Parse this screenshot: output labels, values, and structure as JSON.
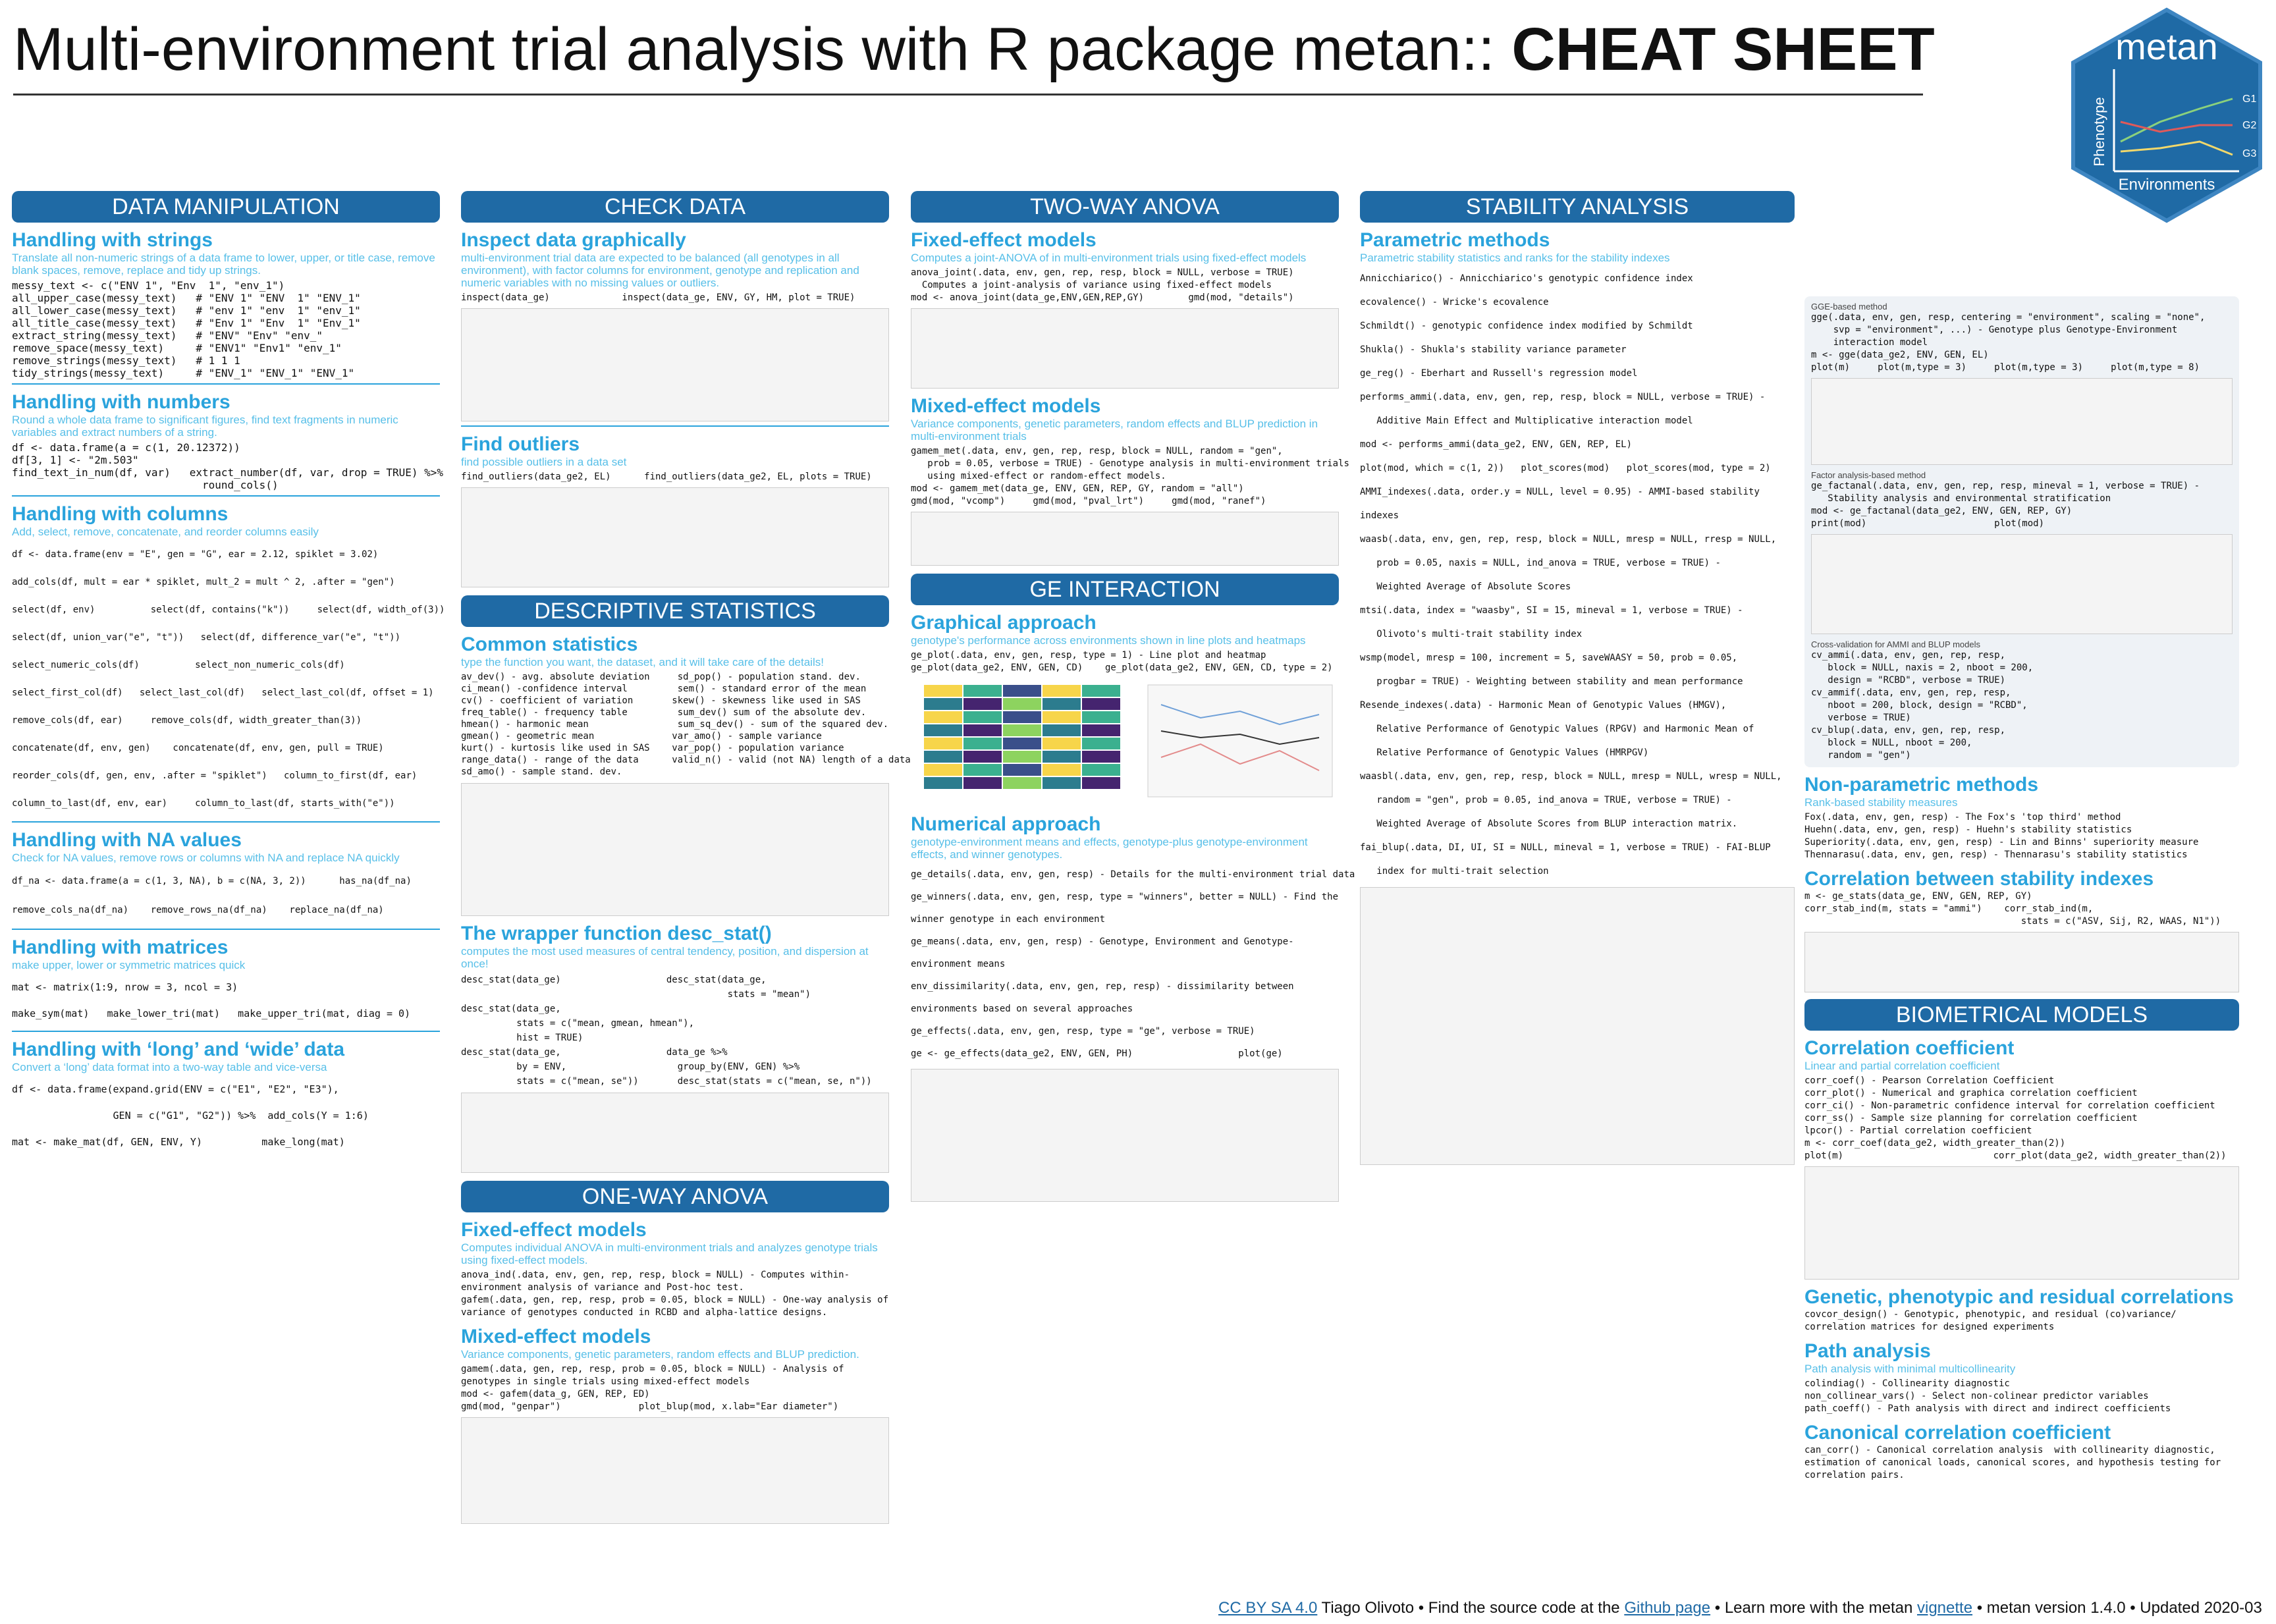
{
  "title": {
    "main": "Multi-environment trial analysis with R package metan:: ",
    "bold": "CHEAT SHEET"
  },
  "logo": {
    "name": "metan",
    "ylabel": "Phenotype",
    "xlabel": "Environments",
    "lines": [
      "G1",
      "G2",
      "G3"
    ]
  },
  "col1": {
    "header": "DATA MANIPULATION",
    "strings": {
      "title": "Handling with strings",
      "sub": "Translate all non-numeric strings of a data frame to lower, upper, or title case, remove blank spaces, remove, replace and tidy up strings.",
      "code": "messy_text <- c(\"ENV 1\", \"Env  1\", \"env_1\")\nall_upper_case(messy_text)   # \"ENV 1\" \"ENV  1\" \"ENV_1\"\nall_lower_case(messy_text)   # \"env 1\" \"env  1\" \"env_1\"\nall_title_case(messy_text)   # \"Env 1\" \"Env  1\" \"Env_1\"\nextract_string(messy_text)   # \"ENV\" \"Env\" \"env_\"\nremove_space(messy_text)     # \"ENV1\" \"Env1\" \"env_1\"\nremove_strings(messy_text)   # 1 1 1\ntidy_strings(messy_text)     # \"ENV_1\" \"ENV_1\" \"ENV_1\""
    },
    "numbers": {
      "title": "Handling with numbers",
      "sub": "Round a whole data frame to significant figures, find text fragments in numeric variables and extract numbers of a string.",
      "code": "df <- data.frame(a = c(1, 20.12372))\ndf[3, 1] <- \"2m.503\"\nfind_text_in_num(df, var)   extract_number(df, var, drop = TRUE) %>%\n                              round_cols()"
    },
    "columns": {
      "title": "Handling with columns",
      "sub": "Add, select, remove, concatenate, and reorder columns easily",
      "code": "df <- data.frame(env = \"E\", gen = \"G\", ear = 2.12, spiklet = 3.02)\nadd_cols(df, mult = ear * spiklet, mult_2 = mult ^ 2, .after = \"gen\")\nselect(df, env)          select(df, contains(\"k\"))     select(df, width_of(3))\nselect(df, union_var(\"e\", \"t\"))   select(df, difference_var(\"e\", \"t\"))\nselect_numeric_cols(df)          select_non_numeric_cols(df)\nselect_first_col(df)   select_last_col(df)   select_last_col(df, offset = 1)\nremove_cols(df, ear)     remove_cols(df, width_greater_than(3))\nconcatenate(df, env, gen)    concatenate(df, env, gen, pull = TRUE)\nreorder_cols(df, gen, env, .after = \"spiklet\")   column_to_first(df, ear)\ncolumn_to_last(df, env, ear)     column_to_last(df, starts_with(\"e\"))"
    },
    "na": {
      "title": "Handling with NA values",
      "sub": "Check for NA values, remove rows or columns with NA and replace NA quickly",
      "code": "df_na <- data.frame(a = c(1, 3, NA), b = c(NA, 3, 2))      has_na(df_na)\nremove_cols_na(df_na)    remove_rows_na(df_na)    replace_na(df_na)"
    },
    "matrices": {
      "title": "Handling with matrices",
      "sub": "make upper, lower or symmetric matrices quick",
      "code": "mat <- matrix(1:9, nrow = 3, ncol = 3)\nmake_sym(mat)   make_lower_tri(mat)   make_upper_tri(mat, diag = 0)"
    },
    "longwide": {
      "title": "Handling with ‘long’ and ‘wide’ data",
      "sub": "Convert a ‘long’ data format into a two-way table and vice-versa",
      "code": "df <- data.frame(expand.grid(ENV = c(\"E1\", \"E2\", \"E3\"),\n                 GEN = c(\"G1\", \"G2\")) %>%  add_cols(Y = 1:6)\nmat <- make_mat(df, GEN, ENV, Y)          make_long(mat)"
    }
  },
  "col2": {
    "header": "CHECK DATA",
    "inspect": {
      "title": "Inspect data graphically",
      "sub": "multi-environment trial data are expected to be balanced (all genotypes in all environment), with factor columns for environment, genotype and replication and numeric variables with no missing values or outliers.",
      "code": "inspect(data_ge)             inspect(data_ge, ENV, GY, HM, plot = TRUE)"
    },
    "outliers": {
      "title": "Find outliers",
      "sub": "find possible outliers in a data set",
      "code": "find_outliers(data_ge2, EL)      find_outliers(data_ge2, EL, plots = TRUE)"
    },
    "desc_header": "DESCRIPTIVE STATISTICS",
    "common": {
      "title": "Common statistics",
      "sub": "type the function you want, the dataset, and it will take care of the details!",
      "code": "av_dev() - avg. absolute deviation     sd_pop() - population stand. dev.\nci_mean() -confidence interval         sem() - standard error of the mean\ncv() - coefficient of variation       skew() - skewness like used in SAS\nfreq_table() - frequency table         sum_dev() sum of the absolute dev.\nhmean() - harmonic mean                sum_sq_dev() - sum of the squared dev.\ngmean() - geometric mean              var_amo() - sample variance\nkurt() - kurtosis like used in SAS    var_pop() - population variance\nrange_data() - range of the data      valid_n() - valid (not NA) length of a data\nsd_amo() - sample stand. dev."
    },
    "wrapper": {
      "title": "The wrapper function desc_stat()",
      "sub": "computes the most used measures of central tendency, position, and dispersion at once!",
      "code": "desc_stat(data_ge)                   desc_stat(data_ge,\n                                                stats = \"mean\")\ndesc_stat(data_ge,\n          stats = c(\"mean, gmean, hmean\"),\n          hist = TRUE)\ndesc_stat(data_ge,                   data_ge %>%\n          by = ENV,                    group_by(ENV, GEN) %>%\n          stats = c(\"mean, se\"))       desc_stat(stats = c(\"mean, se, n\"))"
    },
    "oneway_header": "ONE-WAY ANOVA",
    "fixed": {
      "title": "Fixed-effect models",
      "sub": "Computes individual ANOVA in multi-environment trials and analyzes genotype trials using fixed-effect models.",
      "code": "anova_ind(.data, env, gen, rep, resp, block = NULL) - Computes within-\nenvironment analysis of variance and Post-hoc test.\ngafem(.data, gen, rep, resp, prob = 0.05, block = NULL) - One-way analysis of\nvariance of genotypes conducted in RCBD and alpha-lattice designs."
    },
    "mixed": {
      "title": "Mixed-effect models",
      "sub": "Variance components, genetic parameters, random effects and BLUP prediction.",
      "code": "gamem(.data, gen, rep, resp, prob = 0.05, block = NULL) - Analysis of\ngenotypes in single trials using mixed-effect models\nmod <- gafem(data_g, GEN, REP, ED)\ngmd(mod, \"genpar\")              plot_blup(mod, x.lab=\"Ear diameter\")"
    }
  },
  "col3": {
    "header": "TWO-WAY ANOVA",
    "fixed": {
      "title": "Fixed-effect models",
      "sub": "Computes a joint-ANOVA of in multi-environment trials using fixed-effect models",
      "code": "anova_joint(.data, env, gen, rep, resp, block = NULL, verbose = TRUE)\n  Computes a joint-analysis of variance using fixed-effect models\nmod <- anova_joint(data_ge,ENV,GEN,REP,GY)        gmd(mod, \"details\")"
    },
    "mixed": {
      "title": "Mixed-effect models",
      "sub": "Variance components, genetic parameters, random effects and BLUP prediction in multi-environment trials",
      "code": "gamem_met(.data, env, gen, rep, resp, block = NULL, random = \"gen\",\n   prob = 0.05, verbose = TRUE) - Genotype analysis in multi-environment trials\n   using mixed-effect or random-effect models.\nmod <- gamem_met(data_ge, ENV, GEN, REP, GY, random = \"all\")\ngmd(mod, \"vcomp\")     gmd(mod, \"pval_lrt\")     gmd(mod, \"ranef\")"
    },
    "ge_header": "GE INTERACTION",
    "graphical": {
      "title": "Graphical approach",
      "sub": "genotype's performance across environments shown in line plots and heatmaps",
      "code": "ge_plot(.data, env, gen, resp, type = 1) - Line plot and heatmap\nge_plot(data_ge2, ENV, GEN, CD)    ge_plot(data_ge2, ENV, GEN, CD, type = 2)"
    },
    "numerical": {
      "title": "Numerical approach",
      "sub": "genotype-environment means and effects, genotype-plus genotype-environment effects, and winner genotypes.",
      "code": "ge_details(.data, env, gen, resp) - Details for the multi-environment trial data\nge_winners(.data, env, gen, resp, type = \"winners\", better = NULL) - Find the\nwinner genotype in each environment\nge_means(.data, env, gen, resp) - Genotype, Environment and Genotype-\nenvironment means\nenv_dissimilarity(.data, env, gen, rep, resp) - dissimilarity between\nenvironments based on several approaches\nge_effects(.data, env, gen, resp, type = \"ge\", verbose = TRUE)\nge <- ge_effects(data_ge2, ENV, GEN, PH)                   plot(ge)"
    }
  },
  "col4": {
    "header": "STABILITY ANALYSIS",
    "param": {
      "title": "Parametric methods",
      "sub": "Parametric stability statistics and ranks for the stability indexes",
      "code": "Annicchiarico() - Annicchiarico's genotypic confidence index\necovalence() - Wricke's ecovalence\nSchmildt() - genotypic confidence index modified by Schmildt\nShukla() - Shukla's stability variance parameter\nge_reg() - Eberhart and Russell's regression model\nperforms_ammi(.data, env, gen, rep, resp, block = NULL, verbose = TRUE) -\n   Additive Main Effect and Multiplicative interaction model\nmod <- performs_ammi(data_ge2, ENV, GEN, REP, EL)\nplot(mod, which = c(1, 2))   plot_scores(mod)   plot_scores(mod, type = 2)\nAMMI_indexes(.data, order.y = NULL, level = 0.95) - AMMI-based stability\nindexes\nwaasb(.data, env, gen, rep, resp, block = NULL, mresp = NULL, rresp = NULL,\n   prob = 0.05, naxis = NULL, ind_anova = TRUE, verbose = TRUE) -\n   Weighted Average of Absolute Scores\nmtsi(.data, index = \"waasby\", SI = 15, mineval = 1, verbose = TRUE) -\n   Olivoto's multi-trait stability index\nwsmp(model, mresp = 100, increment = 5, saveWAASY = 50, prob = 0.05,\n   progbar = TRUE) - Weighting between stability and mean performance\nResende_indexes(.data) - Harmonic Mean of Genotypic Values (HMGV),\n   Relative Performance of Genotypic Values (RPGV) and Harmonic Mean of\n   Relative Performance of Genotypic Values (HMRPGV)\nwaasbl(.data, env, gen, rep, resp, block = NULL, mresp = NULL, wresp = NULL,\n   random = \"gen\", prob = 0.05, ind_anova = TRUE, verbose = TRUE) -\n   Weighted Average of Absolute Scores from BLUP interaction matrix.\nfai_blup(.data, DI, UI, SI = NULL, mineval = 1, verbose = TRUE) - FAI-BLUP\n   index for multi-trait selection"
    }
  },
  "col5": {
    "gge": {
      "label": "GGE-based method",
      "code": "gge(.data, env, gen, resp, centering = \"environment\", scaling = \"none\",\n    svp = \"environment\", ...) - Genotype plus Genotype-Environment\n    interaction model\nm <- gge(data_ge2, ENV, GEN, EL)\nplot(m)     plot(m,type = 3)     plot(m,type = 3)     plot(m,type = 8)"
    },
    "factor": {
      "label": "Factor analysis-based method",
      "code": "ge_factanal(.data, env, gen, rep, resp, mineval = 1, verbose = TRUE) -\n   Stability analysis and environmental stratification\nmod <- ge_factanal(data_ge2, ENV, GEN, REP, GY)\nprint(mod)                       plot(mod)"
    },
    "cv": {
      "label": "Cross-validation for AMMI and BLUP models",
      "code": "cv_ammi(.data, env, gen, rep, resp,\n   block = NULL, naxis = 2, nboot = 200,\n   design = \"RCBD\", verbose = TRUE)\ncv_ammif(.data, env, gen, rep, resp,\n   nboot = 200, block, design = \"RCBD\",\n   verbose = TRUE)\ncv_blup(.data, env, gen, rep, resp,\n   block = NULL, nboot = 200,\n   random = \"gen\")"
    },
    "nonparam": {
      "title": "Non-parametric methods",
      "sub": "Rank-based stability measures",
      "code": "Fox(.data, env, gen, resp) - The Fox's 'top third' method\nHuehn(.data, env, gen, resp) - Huehn's stability statistics\nSuperiority(.data, env, gen, resp) - Lin and Binns' superiority measure\nThennarasu(.data, env, gen, resp) - Thennarasu's stability statistics"
    },
    "corrstab": {
      "title": "Correlation between stability indexes",
      "code": "m <- ge_stats(data_ge, ENV, GEN, REP, GY)\ncorr_stab_ind(m, stats = \"ammi\")    corr_stab_ind(m,\n                                       stats = c(\"ASV, Sij, R2, WAAS, N1\"))"
    },
    "bio_header": "BIOMETRICAL MODELS",
    "corr": {
      "title": "Correlation coefficient",
      "sub": "Linear and partial correlation coefficient",
      "code": "corr_coef() - Pearson Correlation Coefficient\ncorr_plot() - Numerical and graphica correlation coefficient\ncorr_ci() - Non-parametric confidence interval for correlation coefficient\ncorr_ss() - Sample size planning for correlation coefficient\nlpcor() - Partial correlation coefficient\nm <- corr_coef(data_ge2, width_greater_than(2))\nplot(m)                           corr_plot(data_ge2, width_greater_than(2))"
    },
    "genetic": {
      "title": "Genetic, phenotypic and residual correlations",
      "code": "covcor_design() - Genotypic, phenotypic, and residual (co)variance/\ncorrelation matrices for designed experiments"
    },
    "path": {
      "title": "Path analysis",
      "sub": "Path analysis with minimal multicollinearity",
      "code": "colindiag() - Collinearity diagnostic\nnon_collinear_vars() - Select non-colinear predictor variables\npath_coeff() - Path analysis with direct and indirect coefficients"
    },
    "canon": {
      "title": "Canonical correlation coefficient",
      "code": "can_corr() - Canonical correlation analysis  with collinearity diagnostic,\nestimation of canonical loads, canonical scores, and hypothesis testing for\ncorrelation pairs."
    }
  },
  "footer": {
    "license": "CC BY SA 4.0",
    "text1": " Tiago Olivoto • Find the source code at the ",
    "github": "Github page",
    "text2": " • Learn more with the metan ",
    "vignette": "vignette",
    "text3": " • metan version 1.4.0 • Updated 2020-03"
  }
}
